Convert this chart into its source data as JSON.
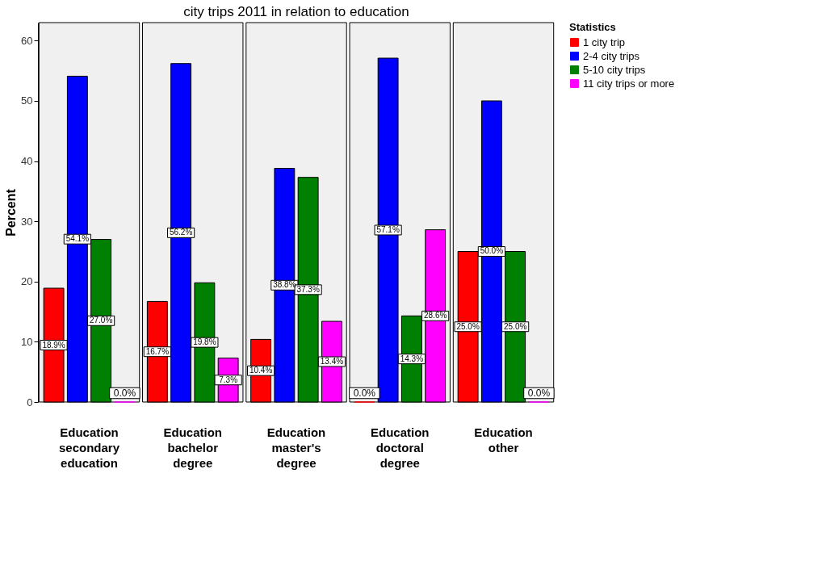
{
  "chart_data": {
    "type": "bar",
    "title": "city trips 2011 in relation to education",
    "ylabel": "Percent",
    "legend_title": "Statistics",
    "categories": [
      "Education secondary education",
      "Education bachelor degree",
      "Education master's degree",
      "Education doctoral degree",
      "Education other"
    ],
    "series": [
      {
        "name": "1 city trip",
        "color": "#ff0000",
        "values": [
          18.9,
          16.7,
          10.4,
          0.0,
          25.0
        ],
        "value_labels": [
          "18.9%",
          "16.7%",
          "10.4%",
          "0.0%",
          "25.0%"
        ]
      },
      {
        "name": "2-4 city trips",
        "color": "#0000ff",
        "values": [
          54.1,
          56.2,
          38.8,
          57.1,
          50.0
        ],
        "value_labels": [
          "54.1%",
          "56.2%",
          "38.8%",
          "57.1%",
          "50.0%"
        ]
      },
      {
        "name": "5-10 city trips",
        "color": "#008000",
        "values": [
          27.0,
          19.8,
          37.3,
          14.3,
          25.0
        ],
        "value_labels": [
          "27.0%",
          "19.8%",
          "37.3%",
          "14.3%",
          "25.0%"
        ]
      },
      {
        "name": "11 city trips or more",
        "color": "#ff00ff",
        "values": [
          0.0,
          7.3,
          13.4,
          28.6,
          0.0
        ],
        "value_labels": [
          "0.0%",
          "7.3%",
          "13.4%",
          "28.6%",
          "0.0%"
        ]
      }
    ],
    "ylim": [
      0,
      63
    ],
    "yticks": [
      0,
      10,
      20,
      30,
      40,
      50,
      60
    ],
    "grid": false,
    "legend": "top right"
  }
}
